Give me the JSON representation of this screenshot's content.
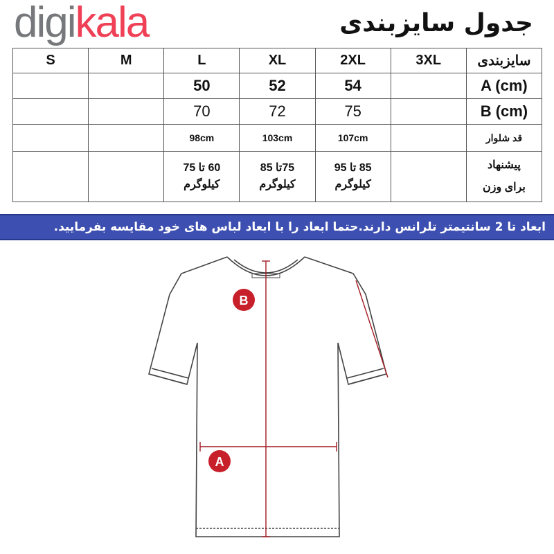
{
  "logo": {
    "part1": "digi",
    "part2": "kala",
    "colors": {
      "digi": "#77787b",
      "kala": "#ef4056"
    }
  },
  "title": "جدول سایزبندی",
  "table": {
    "header_label": "سایزبندی",
    "sizes": [
      "S",
      "M",
      "L",
      "XL",
      "2XL",
      "3XL"
    ],
    "rows": [
      {
        "label": "A (cm)",
        "values": [
          "",
          "",
          "50",
          "52",
          "54",
          ""
        ]
      },
      {
        "label": "B (cm)",
        "values": [
          "",
          "",
          "70",
          "72",
          "75",
          ""
        ]
      },
      {
        "label": "قد شلوار",
        "values": [
          "",
          "",
          "98cm",
          "103cm",
          "107cm",
          ""
        ]
      },
      {
        "label_line1": "پیشنهاد",
        "label_line2": "برای وزن",
        "values": [
          {
            "range": "",
            "unit": ""
          },
          {
            "range": "",
            "unit": ""
          },
          {
            "range": "60 تا 75",
            "unit": "کیلوگرم"
          },
          {
            "range": "75تا 85",
            "unit": "کیلوگرم"
          },
          {
            "range": "85 تا 95",
            "unit": "کیلوگرم"
          },
          {
            "range": "",
            "unit": ""
          }
        ]
      }
    ]
  },
  "banner": {
    "text": "ابعاد تا 2 سانتیمتر تلرانس دارند.حتما ابعاد را با ابعاد لباس های خود مقایسه بفرمایید.",
    "color": "#3d4fb0"
  },
  "diagram": {
    "marker_a": "A",
    "marker_b": "B",
    "marker_color": "#c8202a"
  }
}
